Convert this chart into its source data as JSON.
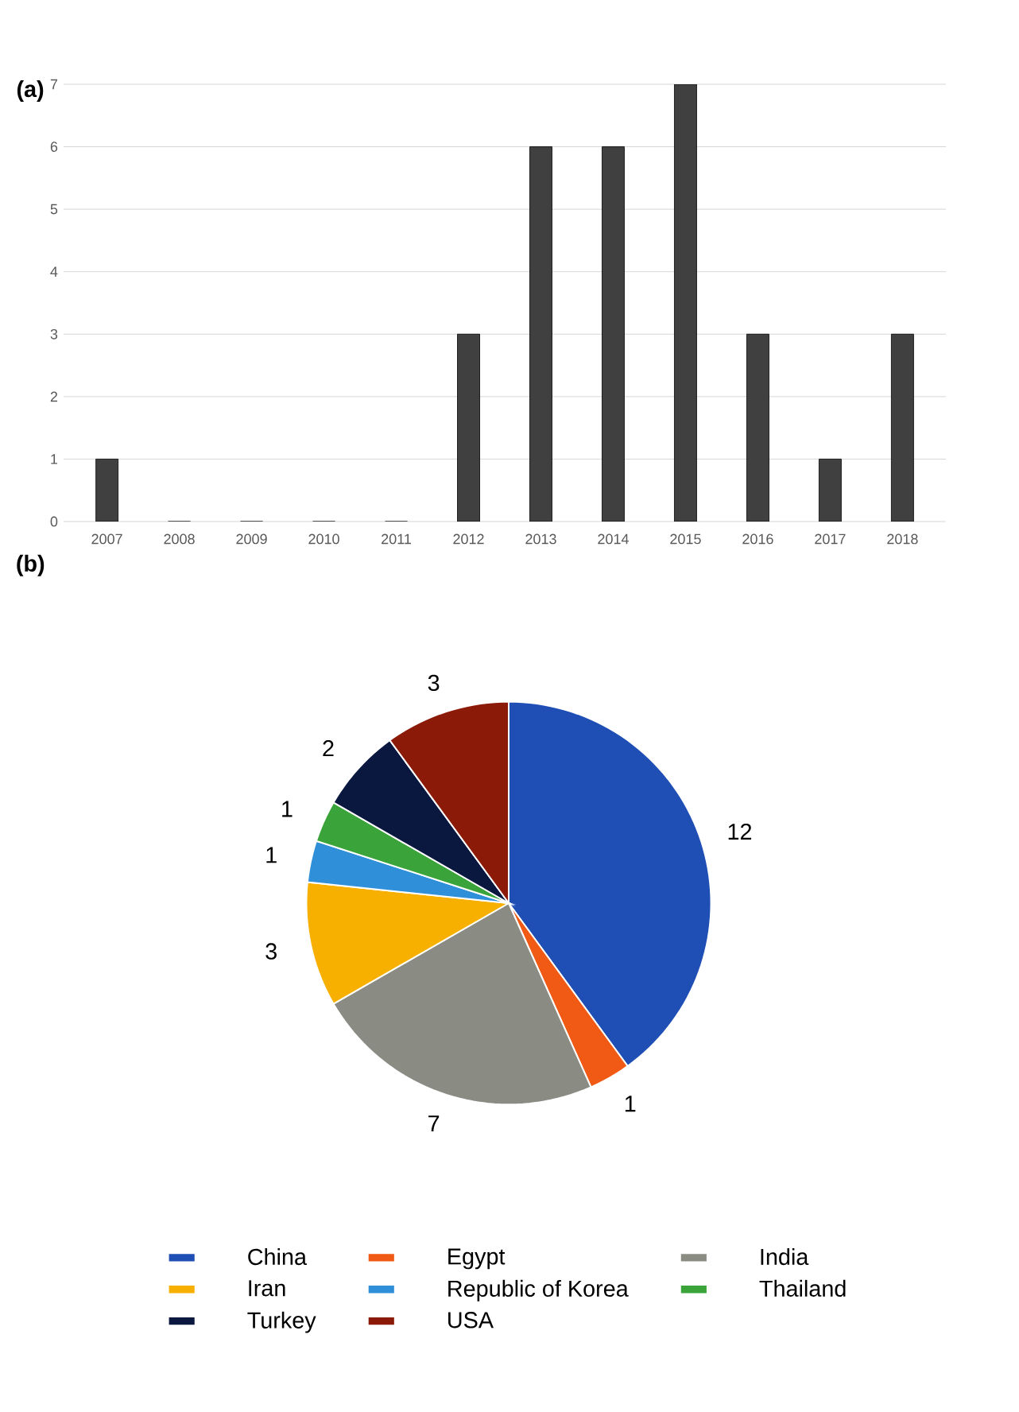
{
  "chart_data": [
    {
      "type": "bar",
      "title": "(a)",
      "categories": [
        "2007",
        "2008",
        "2009",
        "2010",
        "2011",
        "2012",
        "2013",
        "2014",
        "2015",
        "2016",
        "2017",
        "2018"
      ],
      "values": [
        1,
        0,
        0,
        0,
        0,
        3,
        6,
        6,
        7,
        3,
        1,
        3
      ],
      "color": "#404040",
      "ylim": [
        0,
        7
      ],
      "yticks": [
        0,
        1,
        2,
        3,
        4,
        5,
        6,
        7
      ],
      "grid": "y"
    },
    {
      "type": "pie",
      "title": "(b)",
      "categories": [
        "China",
        "Egypt",
        "India",
        "Iran",
        "Republic of Korea",
        "Thailand",
        "Turkey",
        "USA"
      ],
      "values": [
        12,
        1,
        7,
        3,
        1,
        1,
        2,
        3
      ],
      "colors": [
        "#1f4fb5",
        "#f05a14",
        "#8a8c84",
        "#f7b000",
        "#2f8fd8",
        "#3aa43a",
        "#0a1840",
        "#8c1a08"
      ],
      "data_labels": true,
      "legend": "bottom"
    }
  ]
}
